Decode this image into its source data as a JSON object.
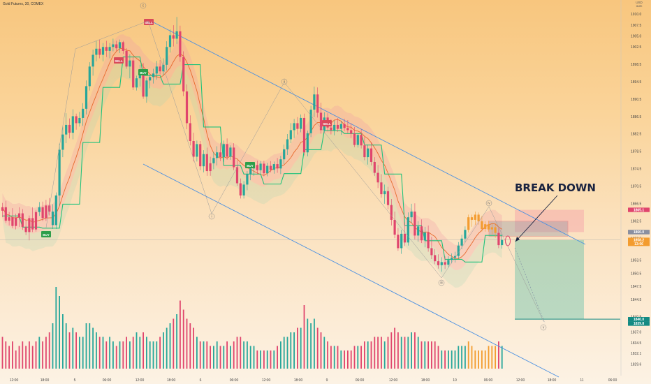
{
  "header": {
    "symbol": "Gold Futures, 30, COMEX",
    "currency": "USD",
    "currency_note": "ourc"
  },
  "colors": {
    "up": "#26a69a",
    "down": "#e0456d",
    "orange": "#f39c2f",
    "channel": "#4a90e2",
    "ma": "#e86a2e",
    "trail": "#1fc27b",
    "target": "#138a83"
  },
  "chart_data": {
    "type": "candlestick",
    "symbol": "Gold Futures, 30, COMEX",
    "y_ticks": [
      "1910.0",
      "1907.5",
      "1905.0",
      "1902.5",
      "1898.5",
      "1894.5",
      "1890.5",
      "1886.5",
      "1882.5",
      "1878.5",
      "1874.5",
      "1870.5",
      "1866.5",
      "1862.5",
      "1858.5",
      "1853.5",
      "1850.5",
      "1847.5",
      "1844.5",
      "1840.5",
      "1837.0",
      "1834.5",
      "1832.1",
      "1829.6"
    ],
    "x_ticks": [
      "12:00",
      "18:00",
      "5",
      "06:00",
      "12:00",
      "18:00",
      "6",
      "06:00",
      "12:00",
      "18:00",
      "9",
      "06:00",
      "12:00",
      "18:00",
      "10",
      "06:00",
      "12:00",
      "18:00",
      "11",
      "06:00"
    ],
    "ylim": [
      1828,
      1912
    ],
    "price_badges": [
      {
        "label": "1865.1",
        "price": 1865.1,
        "color": "#e0456d"
      },
      {
        "label": "1860.0",
        "price": 1860.0,
        "color": "#8a8fa0"
      },
      {
        "label": "1858.2",
        "price": 1858.2,
        "color": "#f39c2f"
      },
      {
        "label": "13:06",
        "price": 1857.3,
        "color": "#f39c2f"
      },
      {
        "label": "1840.0",
        "price": 1840.0,
        "color": "#138a83"
      },
      {
        "label": "1839.8",
        "price": 1839.0,
        "color": "#138a83"
      }
    ],
    "signals": [
      {
        "label": "BUY",
        "type": "buy"
      },
      {
        "label": "SELL",
        "type": "sell"
      },
      {
        "label": "BUY",
        "type": "buy"
      },
      {
        "label": "SELL",
        "type": "sell"
      },
      {
        "label": "BUY",
        "type": "buy"
      },
      {
        "label": "SELL",
        "type": "sell"
      }
    ],
    "wave_labels": [
      "c",
      "i",
      "ii",
      "iii",
      "iv",
      "v"
    ],
    "annotation": "BREAK DOWN",
    "candles": [
      [
        1864.9,
        1866.7,
        1863.4,
        1865.7,
        0.35,
        "down"
      ],
      [
        1865.7,
        1867.2,
        1862.1,
        1862.6,
        0.3,
        "down"
      ],
      [
        1862.6,
        1864.6,
        1861.5,
        1863.4,
        0.25,
        "down"
      ],
      [
        1863.4,
        1865.5,
        1860.9,
        1861.4,
        0.3,
        "down"
      ],
      [
        1861.4,
        1864.2,
        1860.6,
        1863.3,
        0.2,
        "down"
      ],
      [
        1863.3,
        1865.7,
        1861.2,
        1864.3,
        0.25,
        "down"
      ],
      [
        1864.3,
        1865.3,
        1860.5,
        1861.2,
        0.3,
        "down"
      ],
      [
        1861.2,
        1862.7,
        1859.3,
        1860.0,
        0.25,
        "down"
      ],
      [
        1860.0,
        1863.8,
        1858.1,
        1863.2,
        0.3,
        "down"
      ],
      [
        1863.2,
        1865.7,
        1860.0,
        1860.6,
        0.25,
        "down"
      ],
      [
        1860.6,
        1865.1,
        1860.1,
        1864.6,
        0.3,
        "down"
      ],
      [
        1864.6,
        1866.9,
        1863.7,
        1865.7,
        0.35,
        "up"
      ],
      [
        1865.7,
        1867.0,
        1862.5,
        1863.2,
        0.3,
        "down"
      ],
      [
        1863.2,
        1867.4,
        1862.5,
        1866.1,
        0.35,
        "down"
      ],
      [
        1866.1,
        1867.8,
        1863.8,
        1864.7,
        0.4,
        "down"
      ],
      [
        1864.7,
        1866.4,
        1860.7,
        1861.6,
        0.5,
        "up"
      ],
      [
        1861.6,
        1869.1,
        1860.7,
        1868.4,
        0.9,
        "up"
      ],
      [
        1868.4,
        1880.3,
        1866.0,
        1878.9,
        0.8,
        "up"
      ],
      [
        1878.9,
        1884.2,
        1877.2,
        1882.4,
        0.6,
        "up"
      ],
      [
        1882.4,
        1887.3,
        1880.4,
        1884.6,
        0.5,
        "up"
      ],
      [
        1884.6,
        1886.1,
        1881.5,
        1882.8,
        0.4,
        "down"
      ],
      [
        1882.8,
        1888.2,
        1881.3,
        1886.6,
        0.45,
        "up"
      ],
      [
        1886.6,
        1887.2,
        1883.5,
        1885.0,
        0.4,
        "down"
      ],
      [
        1885.0,
        1887.6,
        1884.2,
        1886.2,
        0.35,
        "up"
      ],
      [
        1886.2,
        1889.6,
        1884.4,
        1888.3,
        0.35,
        "up"
      ],
      [
        1888.3,
        1894.8,
        1887.0,
        1893.5,
        0.5,
        "up"
      ],
      [
        1893.5,
        1899.0,
        1892.5,
        1898.0,
        0.5,
        "up"
      ],
      [
        1898.0,
        1901.9,
        1895.9,
        1900.7,
        0.45,
        "up"
      ],
      [
        1900.7,
        1903.9,
        1899.2,
        1902.1,
        0.4,
        "up"
      ],
      [
        1902.1,
        1904.2,
        1899.9,
        1900.7,
        0.35,
        "down"
      ],
      [
        1900.7,
        1903.4,
        1899.2,
        1902.5,
        0.35,
        "up"
      ],
      [
        1902.5,
        1903.9,
        1900.2,
        1901.6,
        0.3,
        "down"
      ],
      [
        1901.6,
        1903.4,
        1899.9,
        1902.5,
        0.35,
        "up"
      ],
      [
        1902.5,
        1904.4,
        1901.5,
        1903.1,
        0.3,
        "up"
      ],
      [
        1903.1,
        1903.9,
        1901.6,
        1902.2,
        0.25,
        "down"
      ],
      [
        1902.2,
        1904.2,
        1901.1,
        1903.6,
        0.3,
        "up"
      ],
      [
        1903.6,
        1903.9,
        1900.9,
        1901.6,
        0.3,
        "down"
      ],
      [
        1901.6,
        1902.2,
        1897.5,
        1898.0,
        0.35,
        "down"
      ],
      [
        1898.0,
        1900.8,
        1895.3,
        1899.4,
        0.3,
        "up"
      ],
      [
        1899.4,
        1900.2,
        1892.6,
        1893.2,
        0.35,
        "down"
      ],
      [
        1893.2,
        1895.9,
        1892.5,
        1895.3,
        0.4,
        "up"
      ],
      [
        1895.3,
        1898.4,
        1893.4,
        1897.3,
        0.35,
        "up"
      ],
      [
        1897.3,
        1898.8,
        1890.6,
        1891.1,
        0.4,
        "down"
      ],
      [
        1891.1,
        1895.4,
        1889.7,
        1894.8,
        0.35,
        "up"
      ],
      [
        1894.8,
        1896.1,
        1893.0,
        1895.6,
        0.3,
        "up"
      ],
      [
        1895.6,
        1897.5,
        1894.1,
        1896.4,
        0.3,
        "up"
      ],
      [
        1896.4,
        1899.3,
        1895.0,
        1898.0,
        0.3,
        "up"
      ],
      [
        1898.0,
        1899.5,
        1896.2,
        1896.9,
        0.35,
        "down"
      ],
      [
        1896.9,
        1899.9,
        1895.9,
        1898.4,
        0.4,
        "up"
      ],
      [
        1898.4,
        1903.8,
        1897.1,
        1902.5,
        0.45,
        "up"
      ],
      [
        1902.5,
        1906.5,
        1901.2,
        1905.2,
        0.5,
        "up"
      ],
      [
        1905.2,
        1907.5,
        1902.6,
        1904.4,
        0.55,
        "down"
      ],
      [
        1904.4,
        1909.4,
        1903.2,
        1906.1,
        0.6,
        "up"
      ],
      [
        1906.1,
        1907.4,
        1899.1,
        1900.2,
        0.75,
        "down"
      ],
      [
        1900.2,
        1901.5,
        1891.2,
        1892.3,
        0.65,
        "down"
      ],
      [
        1892.3,
        1893.9,
        1883.6,
        1885.0,
        0.55,
        "down"
      ],
      [
        1885.0,
        1886.8,
        1879.9,
        1880.9,
        0.5,
        "down"
      ],
      [
        1880.9,
        1882.8,
        1876.2,
        1877.3,
        0.45,
        "down"
      ],
      [
        1877.3,
        1881.0,
        1876.2,
        1880.2,
        0.35,
        "up"
      ],
      [
        1880.2,
        1880.9,
        1874.2,
        1875.1,
        0.3,
        "down"
      ],
      [
        1875.1,
        1878.8,
        1873.7,
        1877.9,
        0.3,
        "up"
      ],
      [
        1877.9,
        1879.4,
        1872.9,
        1874.0,
        0.3,
        "down"
      ],
      [
        1874.0,
        1877.3,
        1872.9,
        1875.8,
        0.25,
        "down"
      ],
      [
        1875.8,
        1878.4,
        1874.4,
        1877.0,
        0.25,
        "up"
      ],
      [
        1877.0,
        1879.7,
        1875.3,
        1878.3,
        0.3,
        "up"
      ],
      [
        1878.3,
        1880.5,
        1876.3,
        1877.2,
        0.25,
        "down"
      ],
      [
        1877.2,
        1881.0,
        1876.1,
        1880.2,
        0.25,
        "up"
      ],
      [
        1880.2,
        1881.5,
        1876.6,
        1877.3,
        0.3,
        "down"
      ],
      [
        1877.3,
        1879.9,
        1876.6,
        1879.4,
        0.25,
        "up"
      ],
      [
        1879.4,
        1880.4,
        1874.2,
        1874.9,
        0.3,
        "down"
      ],
      [
        1874.9,
        1876.5,
        1870.6,
        1871.2,
        0.35,
        "down"
      ],
      [
        1871.2,
        1872.3,
        1867.7,
        1868.4,
        0.35,
        "down"
      ],
      [
        1868.4,
        1871.7,
        1867.7,
        1870.9,
        0.3,
        "up"
      ],
      [
        1870.9,
        1874.0,
        1869.6,
        1873.3,
        0.3,
        "up"
      ],
      [
        1873.3,
        1875.3,
        1871.9,
        1874.6,
        0.25,
        "up"
      ],
      [
        1874.6,
        1876.1,
        1872.9,
        1875.4,
        0.25,
        "up"
      ],
      [
        1875.4,
        1876.4,
        1873.3,
        1874.2,
        0.2,
        "down"
      ],
      [
        1874.2,
        1876.3,
        1873.4,
        1875.7,
        0.2,
        "up"
      ],
      [
        1875.7,
        1876.4,
        1872.8,
        1873.5,
        0.2,
        "down"
      ],
      [
        1873.5,
        1875.9,
        1872.8,
        1875.2,
        0.2,
        "up"
      ],
      [
        1875.2,
        1876.3,
        1873.7,
        1874.3,
        0.2,
        "down"
      ],
      [
        1874.3,
        1876.2,
        1873.4,
        1875.6,
        0.2,
        "up"
      ],
      [
        1875.6,
        1877.0,
        1873.6,
        1874.6,
        0.25,
        "down"
      ],
      [
        1874.6,
        1877.5,
        1873.3,
        1876.7,
        0.3,
        "up"
      ],
      [
        1876.7,
        1880.1,
        1875.6,
        1879.0,
        0.35,
        "up"
      ],
      [
        1879.0,
        1882.5,
        1877.7,
        1881.3,
        0.35,
        "up"
      ],
      [
        1881.3,
        1885.0,
        1880.4,
        1883.4,
        0.4,
        "up"
      ],
      [
        1883.4,
        1886.0,
        1881.6,
        1885.0,
        0.4,
        "up"
      ],
      [
        1885.0,
        1886.4,
        1882.4,
        1883.7,
        0.45,
        "down"
      ],
      [
        1883.7,
        1887.0,
        1882.9,
        1886.2,
        0.45,
        "up"
      ],
      [
        1886.2,
        1887.2,
        1877.6,
        1878.3,
        0.7,
        "down"
      ],
      [
        1878.3,
        1883.3,
        1877.4,
        1882.7,
        0.55,
        "up"
      ],
      [
        1882.7,
        1889.0,
        1881.8,
        1888.1,
        0.5,
        "up"
      ],
      [
        1888.1,
        1893.4,
        1886.4,
        1891.6,
        0.55,
        "up"
      ],
      [
        1891.6,
        1893.2,
        1886.3,
        1887.4,
        0.45,
        "down"
      ],
      [
        1887.4,
        1889.7,
        1882.6,
        1883.4,
        0.4,
        "down"
      ],
      [
        1883.4,
        1887.5,
        1882.7,
        1886.3,
        0.35,
        "up"
      ],
      [
        1886.3,
        1887.3,
        1883.1,
        1884.0,
        0.3,
        "down"
      ],
      [
        1884.0,
        1885.9,
        1882.4,
        1883.4,
        0.25,
        "down"
      ],
      [
        1883.4,
        1885.6,
        1882.2,
        1884.6,
        0.25,
        "up"
      ],
      [
        1884.6,
        1886.2,
        1883.0,
        1883.7,
        0.25,
        "down"
      ],
      [
        1883.7,
        1885.5,
        1882.3,
        1884.8,
        0.2,
        "up"
      ],
      [
        1884.8,
        1886.0,
        1883.2,
        1883.9,
        0.2,
        "down"
      ],
      [
        1883.9,
        1885.7,
        1882.7,
        1883.4,
        0.2,
        "down"
      ],
      [
        1883.4,
        1885.0,
        1881.6,
        1882.6,
        0.2,
        "down"
      ],
      [
        1882.6,
        1884.1,
        1879.5,
        1880.0,
        0.25,
        "down"
      ],
      [
        1880.0,
        1882.7,
        1879.4,
        1882.3,
        0.25,
        "up"
      ],
      [
        1882.3,
        1883.6,
        1879.2,
        1879.9,
        0.25,
        "down"
      ],
      [
        1879.9,
        1881.8,
        1876.5,
        1877.2,
        0.3,
        "down"
      ],
      [
        1877.2,
        1880.1,
        1875.5,
        1879.2,
        0.3,
        "up"
      ],
      [
        1879.2,
        1880.5,
        1875.3,
        1876.1,
        0.3,
        "down"
      ],
      [
        1876.1,
        1877.2,
        1872.9,
        1873.6,
        0.35,
        "down"
      ],
      [
        1873.6,
        1875.4,
        1870.1,
        1871.4,
        0.35,
        "down"
      ],
      [
        1871.4,
        1873.3,
        1867.9,
        1868.7,
        0.35,
        "down"
      ],
      [
        1868.7,
        1870.9,
        1866.5,
        1869.4,
        0.3,
        "up"
      ],
      [
        1869.4,
        1870.4,
        1865.2,
        1866.2,
        0.35,
        "down"
      ],
      [
        1866.2,
        1867.6,
        1861.5,
        1862.8,
        0.4,
        "down"
      ],
      [
        1862.8,
        1864.7,
        1858.6,
        1859.4,
        0.45,
        "down"
      ],
      [
        1859.4,
        1860.9,
        1855.7,
        1856.3,
        0.4,
        "down"
      ],
      [
        1856.3,
        1860.5,
        1855.0,
        1859.6,
        0.35,
        "up"
      ],
      [
        1859.6,
        1862.2,
        1856.8,
        1857.6,
        0.35,
        "down"
      ],
      [
        1857.6,
        1864.5,
        1856.9,
        1863.4,
        0.35,
        "up"
      ],
      [
        1863.4,
        1866.5,
        1862.1,
        1864.7,
        0.4,
        "up"
      ],
      [
        1864.7,
        1866.6,
        1858.3,
        1859.2,
        0.4,
        "down"
      ],
      [
        1859.2,
        1862.5,
        1857.8,
        1861.3,
        0.35,
        "up"
      ],
      [
        1861.3,
        1862.9,
        1857.5,
        1858.1,
        0.3,
        "down"
      ],
      [
        1858.1,
        1861.2,
        1856.5,
        1859.9,
        0.3,
        "up"
      ],
      [
        1859.9,
        1861.5,
        1855.5,
        1856.3,
        0.3,
        "down"
      ],
      [
        1856.3,
        1858.9,
        1853.8,
        1854.7,
        0.3,
        "down"
      ],
      [
        1854.7,
        1856.1,
        1852.6,
        1853.3,
        0.3,
        "down"
      ],
      [
        1853.3,
        1854.9,
        1851.6,
        1852.4,
        0.25,
        "down"
      ],
      [
        1852.4,
        1854.2,
        1850.9,
        1853.1,
        0.2,
        "up"
      ],
      [
        1853.1,
        1854.4,
        1851.5,
        1852.5,
        0.2,
        "down"
      ],
      [
        1852.5,
        1854.5,
        1851.8,
        1853.6,
        0.2,
        "up"
      ],
      [
        1853.6,
        1855.1,
        1852.8,
        1854.1,
        0.2,
        "up"
      ],
      [
        1854.1,
        1855.5,
        1853.0,
        1854.5,
        0.2,
        "up"
      ],
      [
        1854.5,
        1857.7,
        1853.8,
        1856.9,
        0.25,
        "up"
      ],
      [
        1856.9,
        1859.4,
        1856.1,
        1858.5,
        0.25,
        "up"
      ],
      [
        1858.5,
        1861.3,
        1857.6,
        1860.5,
        0.25,
        "up"
      ],
      [
        1860.5,
        1864.0,
        1859.9,
        1863.4,
        0.3,
        "orange"
      ],
      [
        1863.4,
        1864.0,
        1861.2,
        1862.8,
        0.25,
        "orange"
      ],
      [
        1862.8,
        1864.7,
        1861.6,
        1864.0,
        0.2,
        "orange"
      ],
      [
        1864.0,
        1864.5,
        1861.7,
        1862.5,
        0.2,
        "orange"
      ],
      [
        1862.5,
        1863.7,
        1860.1,
        1860.7,
        0.2,
        "orange"
      ],
      [
        1860.7,
        1862.5,
        1860.1,
        1861.8,
        0.2,
        "orange"
      ],
      [
        1861.8,
        1862.6,
        1860.1,
        1860.6,
        0.25,
        "orange"
      ],
      [
        1860.6,
        1862.1,
        1859.5,
        1861.1,
        0.25,
        "orange"
      ],
      [
        1861.1,
        1862.0,
        1858.7,
        1859.8,
        0.25,
        "orange"
      ],
      [
        1859.8,
        1861.0,
        1856.3,
        1857.0,
        0.3,
        "down"
      ],
      [
        1857.0,
        1859.4,
        1856.2,
        1858.2,
        0.25,
        "up"
      ]
    ]
  }
}
